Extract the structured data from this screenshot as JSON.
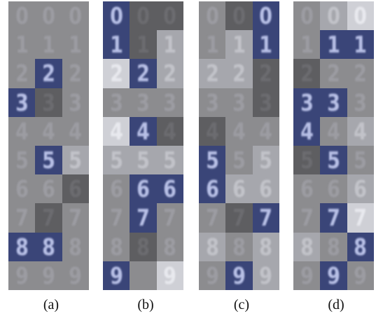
{
  "panels": [
    {
      "caption": "(a)",
      "rows": [
        [
          {
            "d": "0",
            "s": "dim"
          },
          {
            "d": "0",
            "s": "dim"
          },
          {
            "d": "0",
            "s": "dim"
          }
        ],
        [
          {
            "d": "1",
            "s": "dim"
          },
          {
            "d": "1",
            "s": "dim"
          },
          {
            "d": "1",
            "s": "dim"
          }
        ],
        [
          {
            "d": "2",
            "s": "dim"
          },
          {
            "d": "2",
            "s": "blue"
          },
          {
            "d": "2",
            "s": "dim"
          }
        ],
        [
          {
            "d": "3",
            "s": "blue"
          },
          {
            "d": "3",
            "s": "dark"
          },
          {
            "d": "3",
            "s": "dim"
          }
        ],
        [
          {
            "d": "4",
            "s": "dim"
          },
          {
            "d": "4",
            "s": "dim"
          },
          {
            "d": "4",
            "s": "dim"
          }
        ],
        [
          {
            "d": "5",
            "s": "dim"
          },
          {
            "d": "5",
            "s": "blue"
          },
          {
            "d": "5",
            "s": "light"
          }
        ],
        [
          {
            "d": "6",
            "s": "dim"
          },
          {
            "d": "6",
            "s": "dim"
          },
          {
            "d": "6",
            "s": "dark"
          }
        ],
        [
          {
            "d": "7",
            "s": "dim"
          },
          {
            "d": "7",
            "s": "dark"
          },
          {
            "d": "7",
            "s": "dim"
          }
        ],
        [
          {
            "d": "8",
            "s": "blue"
          },
          {
            "d": "8",
            "s": "blue"
          },
          {
            "d": "8",
            "s": "dim"
          }
        ],
        [
          {
            "d": "9",
            "s": "dim"
          },
          {
            "d": "9",
            "s": "dim"
          },
          {
            "d": "9",
            "s": "dim"
          }
        ]
      ]
    },
    {
      "caption": "(b)",
      "rows": [
        [
          {
            "d": "0",
            "s": "blue"
          },
          {
            "d": "0",
            "s": "dark"
          },
          {
            "d": "0",
            "s": "dark"
          }
        ],
        [
          {
            "d": "1",
            "s": "blue"
          },
          {
            "d": "1",
            "s": "dark"
          },
          {
            "d": "1",
            "s": "light"
          }
        ],
        [
          {
            "d": "2",
            "s": "bright"
          },
          {
            "d": "2",
            "s": "blue"
          },
          {
            "d": "2",
            "s": "light"
          }
        ],
        [
          {
            "d": "3",
            "s": "dim"
          },
          {
            "d": "3",
            "s": "dim"
          },
          {
            "d": "3",
            "s": "dim"
          }
        ],
        [
          {
            "d": "4",
            "s": "bright"
          },
          {
            "d": "4",
            "s": "blue"
          },
          {
            "d": "4",
            "s": "dark"
          }
        ],
        [
          {
            "d": "5",
            "s": "light"
          },
          {
            "d": "5",
            "s": "light"
          },
          {
            "d": "5",
            "s": "light"
          }
        ],
        [
          {
            "d": "6",
            "s": "dim"
          },
          {
            "d": "6",
            "s": "blue"
          },
          {
            "d": "6",
            "s": "blue"
          }
        ],
        [
          {
            "d": "7",
            "s": "dim"
          },
          {
            "d": "7",
            "s": "blue"
          },
          {
            "d": "7",
            "s": "dim"
          }
        ],
        [
          {
            "d": "8",
            "s": "dim"
          },
          {
            "d": "8",
            "s": "dark"
          },
          {
            "d": "8",
            "s": "dim"
          }
        ],
        [
          {
            "d": "9",
            "s": "blue"
          },
          {
            "d": "",
            "s": "dim"
          },
          {
            "d": "9",
            "s": "bright"
          }
        ]
      ]
    },
    {
      "caption": "(c)",
      "rows": [
        [
          {
            "d": "0",
            "s": "dim"
          },
          {
            "d": "0",
            "s": "dark"
          },
          {
            "d": "0",
            "s": "blue"
          }
        ],
        [
          {
            "d": "1",
            "s": "dim"
          },
          {
            "d": "1",
            "s": "light"
          },
          {
            "d": "1",
            "s": "blue"
          }
        ],
        [
          {
            "d": "2",
            "s": "light"
          },
          {
            "d": "2",
            "s": "light"
          },
          {
            "d": "2",
            "s": "dark"
          }
        ],
        [
          {
            "d": "3",
            "s": "dim"
          },
          {
            "d": "3",
            "s": "dim"
          },
          {
            "d": "3",
            "s": "dark"
          }
        ],
        [
          {
            "d": "4",
            "s": "dark"
          },
          {
            "d": "4",
            "s": "dim"
          },
          {
            "d": "4",
            "s": "dim"
          }
        ],
        [
          {
            "d": "5",
            "s": "blue"
          },
          {
            "d": "5",
            "s": "dim"
          },
          {
            "d": "5",
            "s": "light"
          }
        ],
        [
          {
            "d": "6",
            "s": "blue"
          },
          {
            "d": "6",
            "s": "light"
          },
          {
            "d": "6",
            "s": "light"
          }
        ],
        [
          {
            "d": "7",
            "s": "dim"
          },
          {
            "d": "7",
            "s": "dark"
          },
          {
            "d": "7",
            "s": "blue"
          }
        ],
        [
          {
            "d": "8",
            "s": "light"
          },
          {
            "d": "8",
            "s": "dim"
          },
          {
            "d": "8",
            "s": "light"
          }
        ],
        [
          {
            "d": "9",
            "s": "dim"
          },
          {
            "d": "9",
            "s": "blue"
          },
          {
            "d": "9",
            "s": "light"
          }
        ]
      ]
    },
    {
      "caption": "(d)",
      "rows": [
        [
          {
            "d": "0",
            "s": "dim"
          },
          {
            "d": "0",
            "s": "light"
          },
          {
            "d": "0",
            "s": "bright"
          }
        ],
        [
          {
            "d": "1",
            "s": "dim"
          },
          {
            "d": "1",
            "s": "blue"
          },
          {
            "d": "1",
            "s": "blue"
          }
        ],
        [
          {
            "d": "2",
            "s": "dark"
          },
          {
            "d": "2",
            "s": "dim"
          },
          {
            "d": "2",
            "s": "dim"
          }
        ],
        [
          {
            "d": "3",
            "s": "blue"
          },
          {
            "d": "3",
            "s": "blue"
          },
          {
            "d": "3",
            "s": "dim"
          }
        ],
        [
          {
            "d": "4",
            "s": "blue"
          },
          {
            "d": "4",
            "s": "dim"
          },
          {
            "d": "4",
            "s": "light"
          }
        ],
        [
          {
            "d": "5",
            "s": "dark"
          },
          {
            "d": "5",
            "s": "blue"
          },
          {
            "d": "5",
            "s": "dim"
          }
        ],
        [
          {
            "d": "6",
            "s": "dim"
          },
          {
            "d": "6",
            "s": "dim"
          },
          {
            "d": "6",
            "s": "light"
          }
        ],
        [
          {
            "d": "7",
            "s": "dim"
          },
          {
            "d": "7",
            "s": "blue"
          },
          {
            "d": "7",
            "s": "bright"
          }
        ],
        [
          {
            "d": "8",
            "s": "light"
          },
          {
            "d": "8",
            "s": "dim"
          },
          {
            "d": "8",
            "s": "blue"
          }
        ],
        [
          {
            "d": "9",
            "s": "dim"
          },
          {
            "d": "9",
            "s": "blue"
          },
          {
            "d": "9",
            "s": "dim"
          }
        ]
      ]
    }
  ],
  "tile_styles": {
    "dim": {
      "bg": "#8c8c8f",
      "fg": "#9c9ca2"
    },
    "dark": {
      "bg": "#5e5e61",
      "fg": "#6c6c70"
    },
    "light": {
      "bg": "#a6a7ad",
      "fg": "#c2c3c9"
    },
    "bright": {
      "bg": "#cfd0d6",
      "fg": "#e8e9ee"
    },
    "blue": {
      "bg": "#3a4578",
      "fg": "#b8c0e6"
    }
  }
}
